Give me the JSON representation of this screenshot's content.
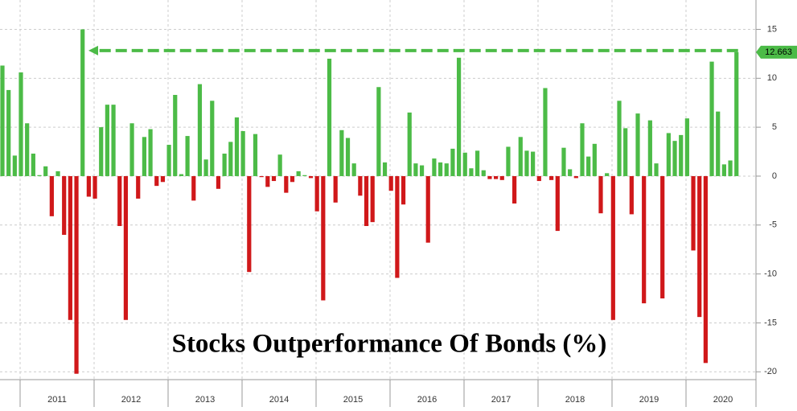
{
  "chart_data": {
    "type": "bar",
    "title": "Stocks Outperformance Of Bonds (%)",
    "values": [
      11.3,
      8.8,
      2.1,
      10.6,
      5.4,
      2.3,
      0.1,
      1.0,
      -4.1,
      0.5,
      -6.0,
      -14.7,
      -20.2,
      15.0,
      -2.1,
      -2.3,
      5.0,
      7.3,
      7.3,
      -5.1,
      -14.7,
      5.4,
      -2.3,
      4.0,
      4.8,
      -1.0,
      -0.6,
      3.2,
      8.3,
      0.2,
      4.1,
      -2.5,
      9.4,
      1.7,
      7.7,
      -1.3,
      2.3,
      3.5,
      6.0,
      4.6,
      -9.8,
      4.3,
      -0.1,
      -1.1,
      -0.5,
      2.2,
      -1.7,
      -0.6,
      0.5,
      0.1,
      -0.2,
      -3.6,
      -12.7,
      12.0,
      -2.7,
      4.7,
      3.9,
      1.3,
      -2.0,
      -5.1,
      -4.7,
      9.1,
      1.4,
      -1.5,
      -10.4,
      -2.9,
      6.5,
      1.3,
      1.1,
      -6.8,
      1.8,
      1.4,
      1.3,
      2.8,
      12.1,
      2.4,
      0.8,
      2.6,
      0.6,
      -0.3,
      -0.3,
      -0.4,
      3.0,
      -2.8,
      4.0,
      2.6,
      2.5,
      -0.5,
      9.0,
      -0.4,
      -5.6,
      2.9,
      0.7,
      -0.2,
      5.4,
      2.0,
      3.3,
      -3.8,
      0.3,
      -14.7,
      7.7,
      4.9,
      -3.9,
      6.4,
      -13.0,
      5.7,
      1.3,
      -12.5,
      4.4,
      3.6,
      4.2,
      5.9,
      -7.6,
      -14.4,
      -19.1,
      11.7,
      6.6,
      1.2,
      1.6,
      12.663
    ],
    "years": [
      "2011",
      "2012",
      "2013",
      "2014",
      "2015",
      "2016",
      "2017",
      "2018",
      "2019",
      "2020"
    ],
    "positive_color": "#4cbb47",
    "negative_color": "#d0181a",
    "ylim": [
      -20.8,
      18
    ],
    "yticks": [
      15,
      10,
      5,
      0,
      -5,
      -10,
      -15,
      -20
    ],
    "grid": true
  }
}
